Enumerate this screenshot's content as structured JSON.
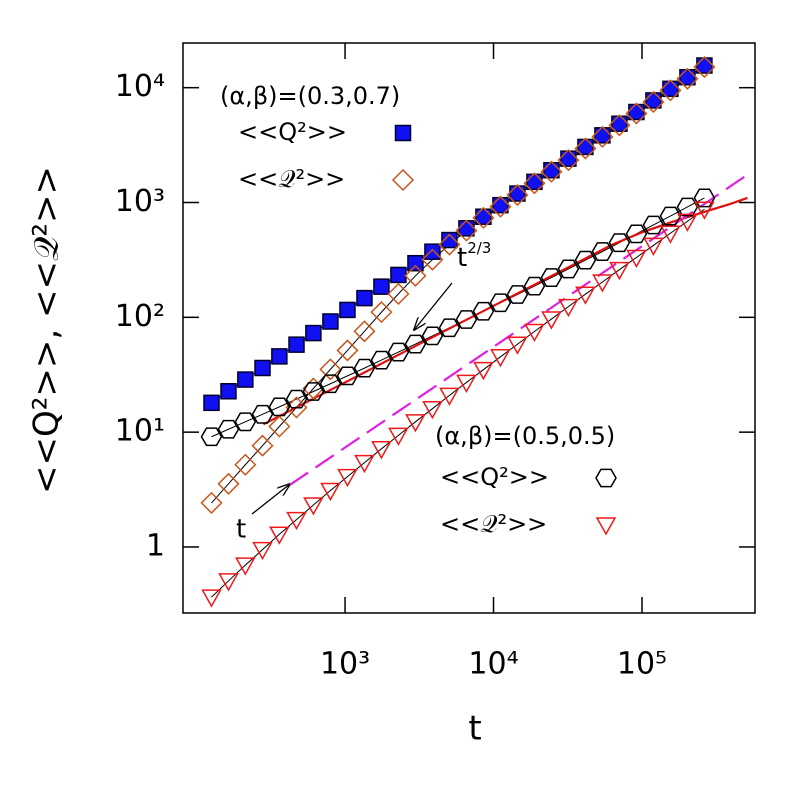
{
  "chart_data": {
    "type": "scatter",
    "x_label": "t",
    "y_label": "<<Q²>>, <<𝒬²>>",
    "xscale": "log",
    "yscale": "log",
    "xlim": [
      81,
      577000
    ],
    "ylim": [
      0.266,
      24500
    ],
    "xticks": [
      {
        "value": 1000,
        "label": "10³"
      },
      {
        "value": 10000,
        "label": "10⁴"
      },
      {
        "value": 100000,
        "label": "10⁵"
      }
    ],
    "yticks": [
      1,
      {
        "value": 10,
        "label": "10¹"
      },
      {
        "value": 100,
        "label": "10²"
      },
      {
        "value": 1000,
        "label": "10³"
      },
      {
        "value": 10000,
        "label": "10⁴"
      }
    ],
    "x": [
      126,
      164,
      213,
      278,
      361,
      471,
      612,
      797,
      1038,
      1351,
      1758,
      2288,
      2979,
      3877,
      5047,
      6570,
      8551,
      11130,
      14490,
      18860,
      24550,
      31950,
      41590,
      54140,
      70470,
      91730,
      119400,
      155400,
      202300,
      263300
    ],
    "legend_titles": [
      "(α,β)=(0.3,0.7)",
      "(α,β)=(0.5,0.5)"
    ],
    "series": [
      {
        "name": "<<Q²>>",
        "group": 0,
        "marker": "square",
        "filled": true,
        "color": "#1010f0",
        "values": [
          18,
          22.7,
          28.7,
          36.2,
          45.7,
          57.8,
          72.9,
          92,
          116,
          147,
          185,
          234,
          296,
          373,
          471,
          596,
          752,
          948,
          1197,
          1514,
          1910,
          2410,
          3048,
          3846,
          4853,
          6138,
          7745,
          9772,
          12330,
          15600
        ]
      },
      {
        "name": "<<𝒬²>>",
        "group": 0,
        "marker": "diamond",
        "filled": false,
        "color": "#c8561a",
        "values": [
          2.42,
          3.55,
          5.2,
          7.62,
          11.2,
          16.4,
          24,
          35.2,
          51.5,
          75.5,
          111,
          160,
          230,
          318,
          430,
          569,
          735,
          920,
          1161,
          1469,
          1853,
          2338,
          2957,
          3731,
          4707,
          5954,
          7513,
          9479,
          11960,
          15130
        ]
      },
      {
        "name": "<<Q²>>",
        "group": 1,
        "marker": "hexagon",
        "filled": false,
        "color": "#000000",
        "values": [
          9.12,
          10.6,
          12.3,
          14.3,
          16.6,
          19.4,
          22.6,
          26.4,
          30.9,
          36.1,
          42.4,
          49.8,
          58.5,
          68.9,
          81.1,
          95.7,
          113,
          134,
          158,
          187,
          222,
          264,
          315,
          374,
          447,
          533,
          637,
          762,
          914,
          1096
        ]
      },
      {
        "name": "<<𝒬²>>",
        "group": 1,
        "marker": "triangle",
        "filled": false,
        "color": "#f01818",
        "values": [
          0.366,
          0.506,
          0.695,
          0.948,
          1.29,
          1.73,
          2.32,
          3.1,
          4.1,
          5.43,
          7.16,
          9.38,
          12.3,
          16,
          20.9,
          27.1,
          35,
          45.3,
          58.3,
          75.3,
          96.6,
          124,
          159,
          203,
          260,
          332,
          423,
          540,
          685,
          873
        ]
      }
    ],
    "connect_color": "#000000",
    "lines": [
      {
        "x": [
          282,
          1000,
          3162,
          10000,
          31623,
          63096,
          100000,
          158489,
          251189,
          398107,
          512861
        ],
        "values": [
          11.7,
          27.1,
          58.5,
          126,
          271,
          430,
          550,
          676,
          813,
          977,
          1096
        ],
        "color": "#e01010",
        "style": "solid"
      },
      {
        "x": [
          425,
          515000
        ],
        "values": [
          3.47,
          1750
        ],
        "color": "#e020e0",
        "style": "dashed"
      }
    ],
    "annotations": [
      {
        "text": "t",
        "sup": "2/3"
      },
      {
        "text": "t"
      }
    ]
  }
}
